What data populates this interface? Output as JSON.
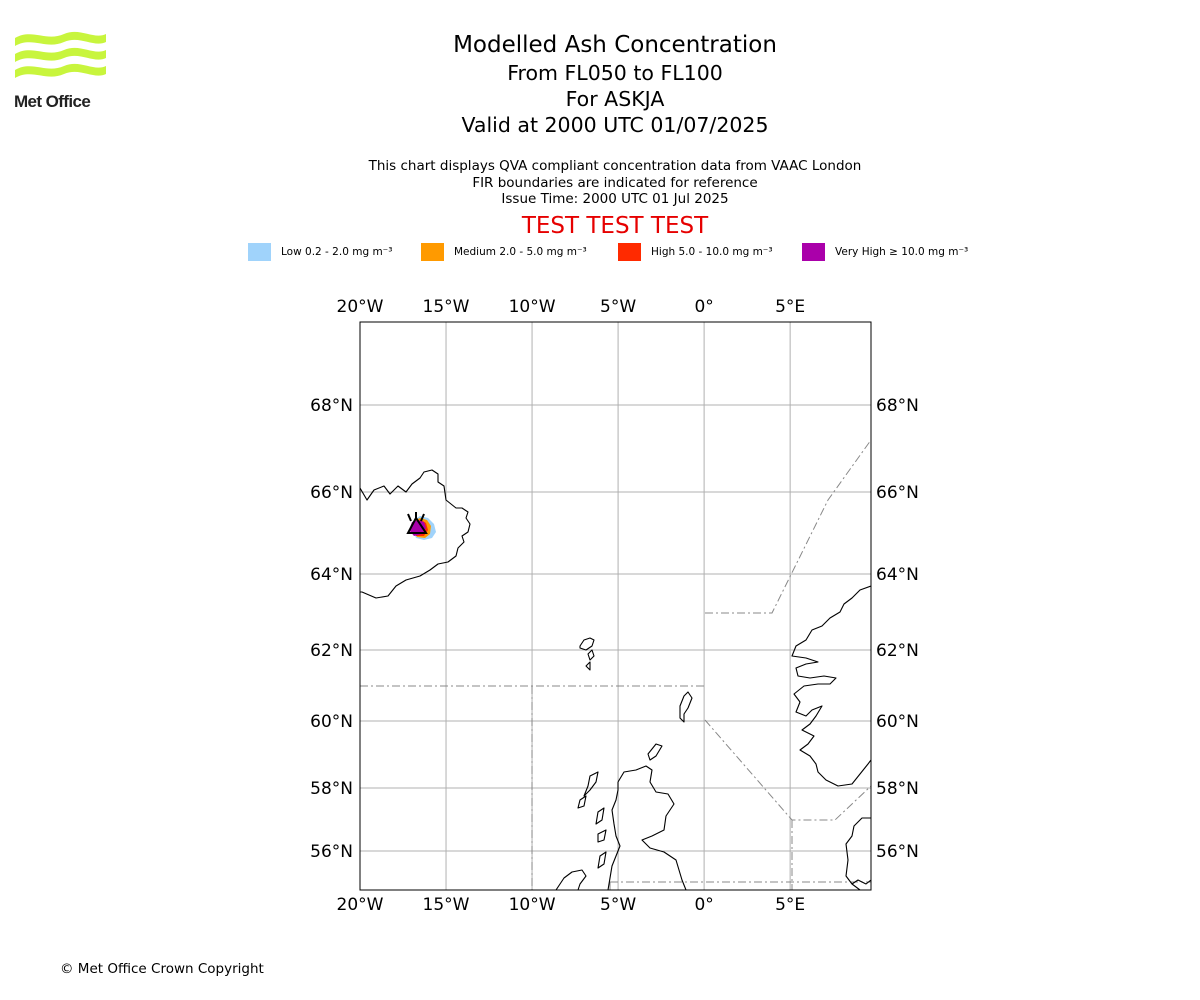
{
  "logo": {
    "brand": "Met Office"
  },
  "title": {
    "line1": "Modelled Ash Concentration",
    "line2": "From FL050 to FL100",
    "line3": "For ASKJA",
    "line4": "Valid at 2000 UTC 01/07/2025"
  },
  "subtitle": {
    "line1": "This chart displays QVA compliant concentration data from VAAC London",
    "line2": "FIR boundaries are indicated for reference",
    "line3": "Issue Time: 2000 UTC 01 Jul 2025"
  },
  "banner": "TEST TEST TEST",
  "legend": [
    {
      "label": "Low 0.2 - 2.0 mg m⁻³",
      "color": "#a0d3fb"
    },
    {
      "label": "Medium 2.0 - 5.0 mg m⁻³",
      "color": "#ff9a00"
    },
    {
      "label": "High 5.0 - 10.0 mg m⁻³",
      "color": "#ff2a00"
    },
    {
      "label": "Very High  ≥  10.0 mg m⁻³",
      "color": "#aa00aa"
    }
  ],
  "map": {
    "lon_range": [
      -20,
      9.7
    ],
    "lat_range": [
      55,
      70.1
    ],
    "lon_ticks": [
      {
        "value": -20,
        "label": "20°W"
      },
      {
        "value": -15,
        "label": "15°W"
      },
      {
        "value": -10,
        "label": "10°W"
      },
      {
        "value": -5,
        "label": "5°W"
      },
      {
        "value": 0,
        "label": "0°"
      },
      {
        "value": 5,
        "label": "5°E"
      }
    ],
    "lat_ticks": [
      {
        "value": 68,
        "label": "68°N"
      },
      {
        "value": 66,
        "label": "66°N"
      },
      {
        "value": 64,
        "label": "64°N"
      },
      {
        "value": 62,
        "label": "62°N"
      },
      {
        "value": 60,
        "label": "60°N"
      },
      {
        "value": 58,
        "label": "58°N"
      },
      {
        "value": 56,
        "label": "56°N"
      }
    ],
    "grid": true,
    "volcano": {
      "name": "ASKJA",
      "lon": -16.75,
      "lat": 65.03
    }
  },
  "footer": {
    "copyright": "© Met Office Crown Copyright"
  }
}
